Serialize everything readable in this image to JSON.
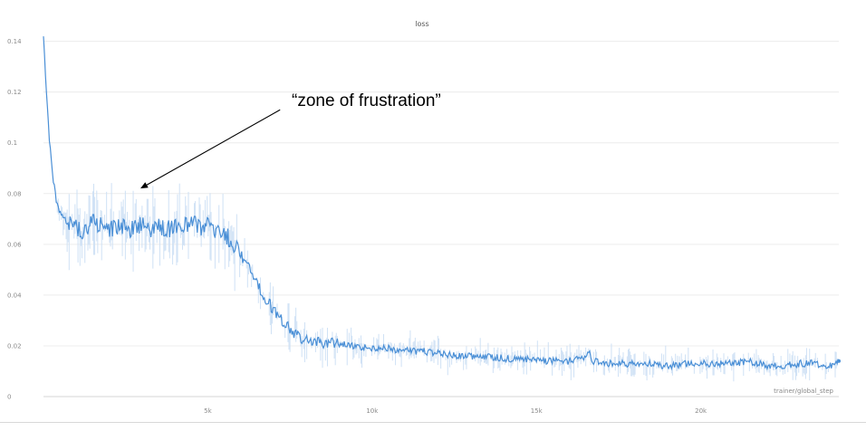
{
  "chart_data": {
    "type": "line",
    "title": "loss",
    "xlabel": "trainer/global_step",
    "ylabel": "",
    "xlim": [
      0,
      24200
    ],
    "ylim": [
      0,
      0.142
    ],
    "x_ticks": [
      5000,
      10000,
      15000,
      20000
    ],
    "x_tick_labels": [
      "5k",
      "10k",
      "15k",
      "20k"
    ],
    "y_ticks": [
      0,
      0.02,
      0.04,
      0.06,
      0.08,
      0.1,
      0.12,
      0.14
    ],
    "y_tick_labels": [
      "0",
      "0.02",
      "0.04",
      "0.06",
      "0.08",
      "0.1",
      "0.12",
      "0.14"
    ],
    "grid": true,
    "legend": "none",
    "series": [
      {
        "color": "#4a8fd6",
        "x": [
          0,
          100,
          200,
          300,
          400,
          500,
          600,
          800,
          1000,
          1200,
          1500,
          1800,
          2100,
          2400,
          2700,
          3000,
          3300,
          3600,
          3900,
          4200,
          4500,
          4800,
          5000,
          5200,
          5400,
          5600,
          5800,
          6000,
          6200,
          6400,
          6600,
          6800,
          7000,
          7200,
          7400,
          7600,
          8000,
          8500,
          9000,
          9500,
          10000,
          10500,
          11000,
          11500,
          12000,
          12500,
          13000,
          13500,
          14000,
          14500,
          15000,
          15500,
          16000,
          16500,
          16600,
          16700,
          17000,
          17500,
          18000,
          18500,
          19000,
          19500,
          20000,
          20500,
          21000,
          21500,
          22000,
          22500,
          23000,
          23500,
          24000,
          24200
        ],
        "y": [
          0.142,
          0.118,
          0.098,
          0.085,
          0.077,
          0.073,
          0.071,
          0.068,
          0.067,
          0.065,
          0.069,
          0.067,
          0.066,
          0.067,
          0.066,
          0.068,
          0.066,
          0.067,
          0.066,
          0.067,
          0.068,
          0.067,
          0.068,
          0.066,
          0.065,
          0.063,
          0.06,
          0.056,
          0.052,
          0.047,
          0.042,
          0.038,
          0.034,
          0.031,
          0.028,
          0.025,
          0.022,
          0.021,
          0.021,
          0.02,
          0.019,
          0.019,
          0.018,
          0.018,
          0.017,
          0.016,
          0.016,
          0.016,
          0.015,
          0.015,
          0.014,
          0.014,
          0.014,
          0.015,
          0.019,
          0.014,
          0.013,
          0.013,
          0.013,
          0.013,
          0.012,
          0.013,
          0.013,
          0.013,
          0.013,
          0.014,
          0.012,
          0.012,
          0.013,
          0.013,
          0.012,
          0.014
        ]
      }
    ],
    "annotations": [
      {
        "text": "“zone of frustration”",
        "arrow_from": [
          7200,
          0.113
        ],
        "arrow_to": [
          2950,
          0.082
        ]
      }
    ]
  }
}
